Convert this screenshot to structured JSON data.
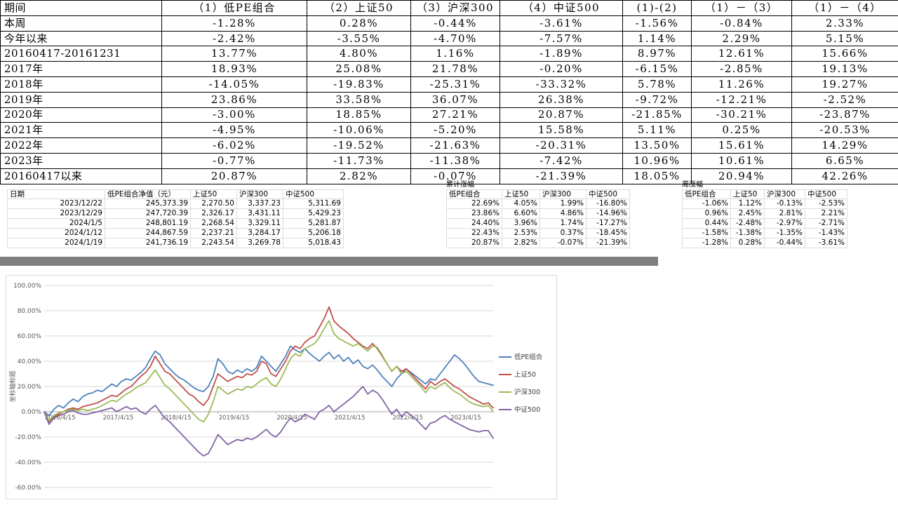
{
  "main_table": {
    "headers": [
      "期间",
      "（1）低PE组合",
      "（2）上证50",
      "（3）沪深300",
      "（4）中证500",
      "(1)-(2)",
      "（1）－（3）",
      "（1）－（4）"
    ],
    "rows": [
      {
        "label": "本周",
        "values": [
          "-1.28%",
          "0.28%",
          "-0.44%",
          "-3.61%",
          "-1.56%",
          "-0.84%",
          "2.33%"
        ]
      },
      {
        "label": "今年以来",
        "values": [
          "-2.42%",
          "-3.55%",
          "-4.70%",
          "-7.57%",
          "1.14%",
          "2.29%",
          "5.15%"
        ]
      },
      {
        "label": "20160417-20161231",
        "values": [
          "13.77%",
          "4.80%",
          "1.16%",
          "-1.89%",
          "8.97%",
          "12.61%",
          "15.66%"
        ]
      },
      {
        "label": "2017年",
        "values": [
          "18.93%",
          "25.08%",
          "21.78%",
          "-0.20%",
          "-6.15%",
          "-2.85%",
          "19.13%"
        ]
      },
      {
        "label": "2018年",
        "values": [
          "-14.05%",
          "-19.83%",
          "-25.31%",
          "-33.32%",
          "5.78%",
          "11.26%",
          "19.27%"
        ]
      },
      {
        "label": "2019年",
        "values": [
          "23.86%",
          "33.58%",
          "36.07%",
          "26.38%",
          "-9.72%",
          "-12.21%",
          "-2.52%"
        ]
      },
      {
        "label": "2020年",
        "values": [
          "-3.00%",
          "18.85%",
          "27.21%",
          "20.87%",
          "-21.85%",
          "-30.21%",
          "-23.87%"
        ]
      },
      {
        "label": "2021年",
        "values": [
          "-4.95%",
          "-10.06%",
          "-5.20%",
          "15.58%",
          "5.11%",
          "0.25%",
          "-20.53%"
        ]
      },
      {
        "label": "2022年",
        "values": [
          "-6.02%",
          "-19.52%",
          "-21.63%",
          "-20.31%",
          "13.50%",
          "15.61%",
          "14.29%"
        ]
      },
      {
        "label": "2023年",
        "values": [
          "-0.77%",
          "-11.73%",
          "-11.38%",
          "-7.42%",
          "10.96%",
          "10.61%",
          "6.65%"
        ]
      },
      {
        "label": "20160417以来",
        "values": [
          "20.87%",
          "2.82%",
          "-0.07%",
          "-21.39%",
          "18.05%",
          "20.94%",
          "42.26%"
        ]
      }
    ]
  },
  "detail_table": {
    "group_labels": {
      "cumulative": "累计涨幅",
      "weekly": "周涨幅"
    },
    "headers": [
      "日期",
      "低PE组合净值（元）",
      "上证50",
      "沪深300",
      "中证500",
      "低PE组合",
      "上证50",
      "沪深300",
      "中证500",
      "低PE组合",
      "上证50",
      "沪深300",
      "中证500"
    ],
    "rows": [
      [
        "2023/12/22",
        "245,373.39",
        "2,270.50",
        "3,337.23",
        "5,311.69",
        "22.69%",
        "4.05%",
        "1.99%",
        "-16.80%",
        "-1.06%",
        "1.12%",
        "-0.13%",
        "-2.53%"
      ],
      [
        "2023/12/29",
        "247,720.39",
        "2,326.17",
        "3,431.11",
        "5,429.23",
        "23.86%",
        "6.60%",
        "4.86%",
        "-14.96%",
        "0.96%",
        "2.45%",
        "2.81%",
        "2.21%"
      ],
      [
        "2024/1/5",
        "248,801.19",
        "2,268.54",
        "3,329.11",
        "5,281.87",
        "24.40%",
        "3.96%",
        "1.74%",
        "-17.27%",
        "0.44%",
        "-2.48%",
        "-2.97%",
        "-2.71%"
      ],
      [
        "2024/1/12",
        "244,867.59",
        "2,237.21",
        "3,284.17",
        "5,206.18",
        "22.43%",
        "2.53%",
        "0.37%",
        "-18.45%",
        "-1.58%",
        "-1.38%",
        "-1.35%",
        "-1.43%"
      ],
      [
        "2024/1/19",
        "241,736.19",
        "2,243.54",
        "3,269.78",
        "5,018.43",
        "20.87%",
        "2.82%",
        "-0.07%",
        "-21.39%",
        "-1.28%",
        "0.28%",
        "-0.44%",
        "-3.61%"
      ]
    ]
  },
  "chart_data": {
    "type": "line",
    "title": "",
    "axis_title_y": "坐标轴标题",
    "ylim": [
      -60,
      100
    ],
    "ytick_step": 20,
    "ytick_labels": [
      "100.00%",
      "80.00%",
      "60.00%",
      "40.00%",
      "20.00%",
      "0.00%",
      "-20.00%",
      "-40.00%",
      "-60.00%"
    ],
    "x_labels": [
      "2016/4/15",
      "2017/4/15",
      "2018/4/15",
      "2019/4/15",
      "2020/4/15",
      "2021/4/15",
      "2022/4/15",
      "2023/4/15"
    ],
    "x_unit": "months_since_2016-04",
    "grid": true,
    "legend_position": "right",
    "series": [
      {
        "name": "低PE组合",
        "color": "#4F81BD",
        "values": [
          0,
          -3,
          2,
          5,
          3,
          7,
          10,
          8,
          12,
          14,
          15,
          17,
          16,
          19,
          22,
          20,
          24,
          26,
          25,
          28,
          31,
          35,
          42,
          48,
          45,
          38,
          34,
          30,
          27,
          25,
          22,
          19,
          17,
          16,
          20,
          28,
          42,
          38,
          32,
          30,
          33,
          31,
          34,
          32,
          35,
          44,
          40,
          36,
          32,
          38,
          44,
          52,
          49,
          47,
          50,
          46,
          43,
          40,
          44,
          47,
          42,
          45,
          40,
          43,
          38,
          41,
          36,
          34,
          37,
          33,
          28,
          24,
          20,
          26,
          30,
          34,
          31,
          28,
          25,
          22,
          26,
          25,
          30,
          35,
          40,
          45,
          42,
          38,
          33,
          28,
          24,
          23,
          22,
          21
        ]
      },
      {
        "name": "上证50",
        "color": "#C0504D",
        "values": [
          0,
          -8,
          -4,
          -2,
          0,
          2,
          3,
          2,
          4,
          5,
          6,
          7,
          9,
          11,
          13,
          12,
          15,
          18,
          20,
          24,
          28,
          31,
          36,
          44,
          38,
          32,
          30,
          26,
          22,
          18,
          14,
          12,
          8,
          5,
          10,
          20,
          30,
          27,
          24,
          26,
          28,
          27,
          30,
          29,
          32,
          40,
          38,
          30,
          28,
          34,
          40,
          48,
          52,
          50,
          55,
          58,
          60,
          67,
          74,
          83,
          72,
          68,
          65,
          62,
          58,
          55,
          52,
          50,
          54,
          50,
          44,
          38,
          32,
          36,
          32,
          34,
          30,
          26,
          22,
          18,
          24,
          21,
          24,
          26,
          23,
          20,
          18,
          15,
          12,
          10,
          8,
          6,
          7,
          3
        ]
      },
      {
        "name": "沪深300",
        "color": "#9BBB59",
        "values": [
          0,
          -7,
          -3,
          -1,
          0,
          1,
          2,
          1,
          2,
          1,
          2,
          3,
          5,
          7,
          9,
          8,
          11,
          14,
          16,
          19,
          21,
          23,
          28,
          33,
          27,
          21,
          18,
          14,
          10,
          6,
          2,
          -2,
          -6,
          -8,
          -2,
          8,
          20,
          17,
          14,
          16,
          18,
          17,
          20,
          19,
          22,
          25,
          27,
          22,
          20,
          26,
          34,
          42,
          46,
          44,
          50,
          52,
          54,
          59,
          66,
          72,
          62,
          58,
          56,
          54,
          52,
          54,
          51,
          48,
          52,
          51,
          45,
          38,
          32,
          36,
          30,
          32,
          28,
          24,
          20,
          15,
          20,
          18,
          21,
          23,
          19,
          16,
          14,
          11,
          8,
          6,
          5,
          4,
          5,
          0
        ]
      },
      {
        "name": "中证500",
        "color": "#8064A2",
        "values": [
          0,
          -10,
          -5,
          -3,
          -2,
          0,
          1,
          -1,
          -2,
          -2,
          -1,
          0,
          1,
          2,
          3,
          0,
          2,
          4,
          2,
          3,
          0,
          -2,
          2,
          5,
          0,
          -5,
          -8,
          -12,
          -16,
          -20,
          -24,
          -28,
          -32,
          -35,
          -33,
          -26,
          -18,
          -22,
          -26,
          -24,
          -22,
          -23,
          -21,
          -22,
          -20,
          -17,
          -14,
          -18,
          -20,
          -16,
          -10,
          -5,
          -8,
          -6,
          -2,
          -4,
          -6,
          0,
          2,
          5,
          0,
          3,
          6,
          9,
          12,
          16,
          20,
          14,
          17,
          15,
          10,
          4,
          -2,
          2,
          -4,
          0,
          -3,
          -6,
          -10,
          -14,
          -9,
          -8,
          -5,
          -3,
          -6,
          -8,
          -10,
          -12,
          -14,
          -15,
          -16,
          -15,
          -15,
          -21
        ]
      }
    ]
  }
}
